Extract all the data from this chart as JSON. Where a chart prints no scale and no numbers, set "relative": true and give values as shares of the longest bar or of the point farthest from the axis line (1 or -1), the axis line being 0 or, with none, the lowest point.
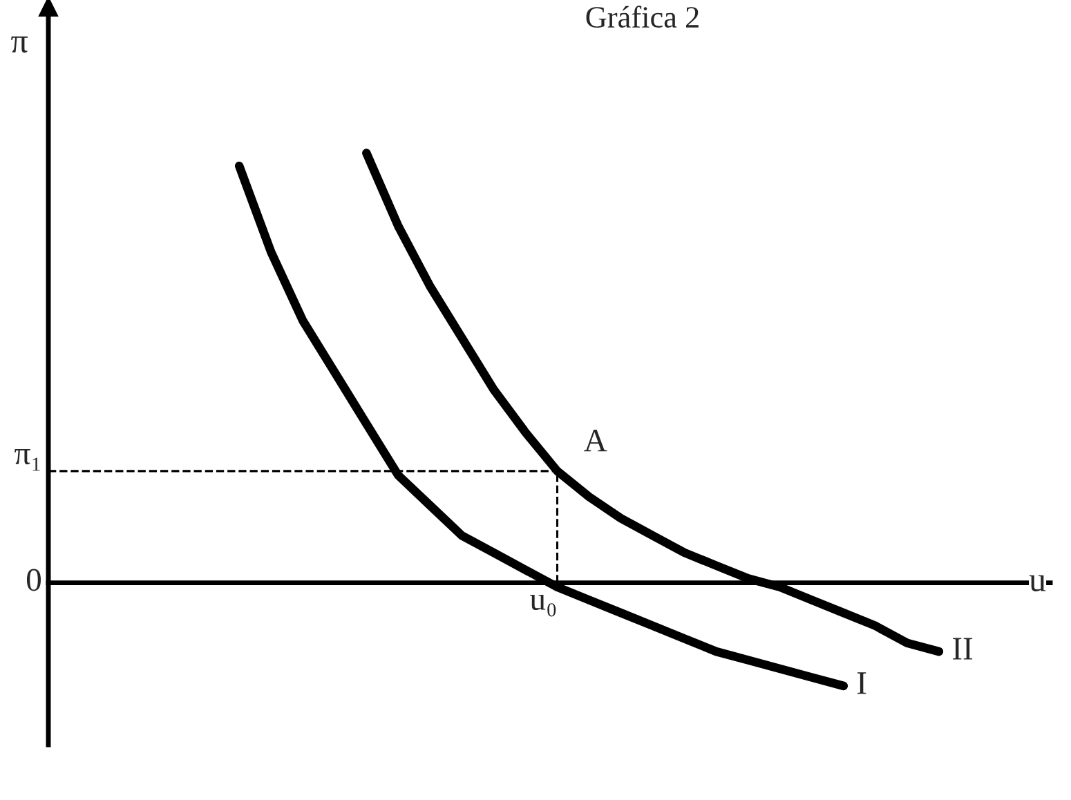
{
  "chart_data": {
    "type": "line",
    "title": "Gráfica 2",
    "xlabel": "u",
    "ylabel": "π",
    "relative": true,
    "legend": false,
    "marker": "none",
    "line_style": "solid",
    "categories": [
      null,
      null,
      null,
      null,
      null,
      null,
      null,
      null,
      null,
      null,
      null,
      null,
      null,
      null,
      null,
      null,
      null,
      null,
      null,
      null,
      null,
      null,
      null,
      null,
      null,
      null,
      null,
      null,
      null,
      null,
      null,
      null
    ],
    "series": [
      {
        "name": "I",
        "color": "#000000",
        "values": [
          null,
          null,
          null,
          null,
          null,
          null,
          0.97,
          0.77,
          0.61,
          0.49,
          0.37,
          0.25,
          0.18,
          0.11,
          0.07,
          0.03,
          -0.01,
          -0.04,
          -0.07,
          -0.1,
          -0.13,
          -0.16,
          -0.18,
          -0.2,
          -0.22,
          -0.24,
          null,
          null,
          null,
          null,
          null,
          null
        ]
      },
      {
        "name": "II",
        "color": "#000000",
        "values": [
          null,
          null,
          null,
          null,
          null,
          null,
          null,
          null,
          null,
          null,
          1.0,
          0.83,
          0.69,
          0.57,
          0.45,
          0.35,
          0.26,
          0.2,
          0.15,
          0.11,
          0.07,
          0.04,
          0.01,
          -0.01,
          -0.04,
          -0.07,
          -0.1,
          -0.14,
          -0.16,
          null,
          null,
          null
        ]
      }
    ],
    "ref_lines": [
      {
        "axis": "y",
        "value": 0.26,
        "label": "π₁",
        "line_style": "dashed",
        "color": "#000000"
      }
    ],
    "annotations": [
      "0",
      "u₀",
      "A"
    ]
  }
}
